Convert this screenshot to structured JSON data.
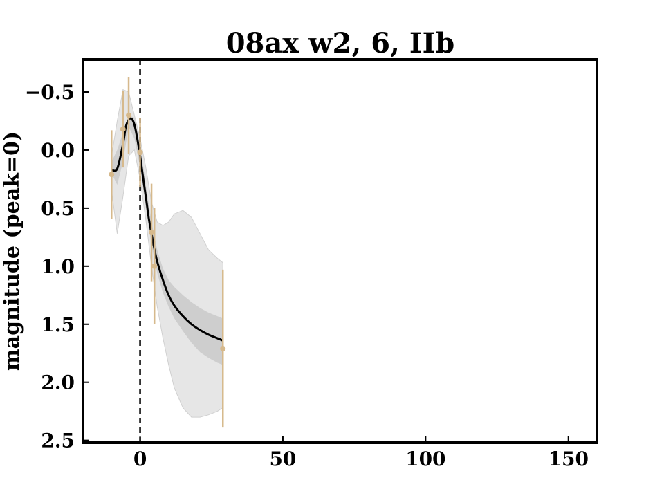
{
  "chart_data": {
    "type": "line",
    "title": "08ax w2, 6, IIb",
    "xlabel": "",
    "ylabel": "magnitude (peak=0)",
    "xlim": [
      -20,
      160
    ],
    "ylim": [
      2.52,
      -0.78
    ],
    "y_inverted": true,
    "grid": false,
    "x_ticks": [
      0,
      50,
      100,
      150
    ],
    "y_ticks": [
      -0.5,
      0.0,
      0.5,
      1.0,
      1.5,
      2.0,
      2.5
    ],
    "x_tick_labels": [
      "0",
      "50",
      "100",
      "150"
    ],
    "y_tick_labels": [
      "−0.5",
      "0.0",
      "0.5",
      "1.0",
      "1.5",
      "2.0",
      "2.5"
    ],
    "reference_line": {
      "x": 0,
      "style": "dashed"
    },
    "model_curve": {
      "color": "#000000",
      "x": [
        -10,
        -8,
        -6,
        -5,
        -4,
        -3,
        -2,
        -1,
        0,
        1,
        2,
        3,
        4,
        5,
        6,
        8,
        10,
        12,
        15,
        18,
        21,
        24,
        27,
        29
      ],
      "y": [
        0.17,
        0.16,
        -0.05,
        -0.2,
        -0.26,
        -0.27,
        -0.22,
        -0.1,
        0.05,
        0.23,
        0.4,
        0.58,
        0.72,
        0.85,
        0.96,
        1.12,
        1.25,
        1.34,
        1.43,
        1.5,
        1.55,
        1.59,
        1.62,
        1.64
      ]
    },
    "inner_band": {
      "color": "#c8c8c8",
      "x": [
        -10,
        -8,
        -6,
        -4,
        -2,
        0,
        2,
        4,
        6,
        8,
        10,
        12,
        15,
        18,
        21,
        24,
        27,
        29
      ],
      "y_low": [
        0.1,
        0.0,
        -0.15,
        -0.3,
        -0.28,
        -0.05,
        0.3,
        0.62,
        0.86,
        1.02,
        1.12,
        1.18,
        1.25,
        1.31,
        1.36,
        1.4,
        1.43,
        1.45
      ],
      "y_high": [
        0.2,
        0.3,
        0.1,
        -0.2,
        -0.1,
        0.15,
        0.5,
        0.82,
        1.06,
        1.23,
        1.35,
        1.45,
        1.56,
        1.66,
        1.74,
        1.79,
        1.83,
        1.85
      ]
    },
    "outer_band": {
      "color": "#e6e6e6",
      "x": [
        -10,
        -8,
        -6,
        -4,
        -2,
        0,
        2,
        4,
        6,
        8,
        10,
        12,
        15,
        18,
        21,
        24,
        27,
        29
      ],
      "y_low": [
        0.05,
        -0.25,
        -0.52,
        -0.5,
        -0.3,
        -0.1,
        0.15,
        0.45,
        0.62,
        0.65,
        0.62,
        0.55,
        0.52,
        0.58,
        0.72,
        0.86,
        0.93,
        0.97
      ],
      "y_high": [
        0.35,
        0.72,
        0.4,
        0.05,
        0.0,
        0.25,
        0.6,
        1.0,
        1.35,
        1.62,
        1.85,
        2.05,
        2.22,
        2.3,
        2.3,
        2.28,
        2.25,
        2.22
      ]
    },
    "observations": {
      "color": "#d6b98c",
      "points": [
        {
          "x": -10,
          "y": 0.21,
          "err": 0.38
        },
        {
          "x": -6,
          "y": -0.18,
          "err": 0.33
        },
        {
          "x": -4,
          "y": -0.3,
          "err": 0.33
        },
        {
          "x": 0,
          "y": 0.02,
          "err": 0.3
        },
        {
          "x": 4,
          "y": 0.71,
          "err": 0.42
        },
        {
          "x": 5,
          "y": 1.0,
          "err": 0.5
        },
        {
          "x": 29,
          "y": 1.71,
          "err": 0.68
        }
      ]
    }
  }
}
